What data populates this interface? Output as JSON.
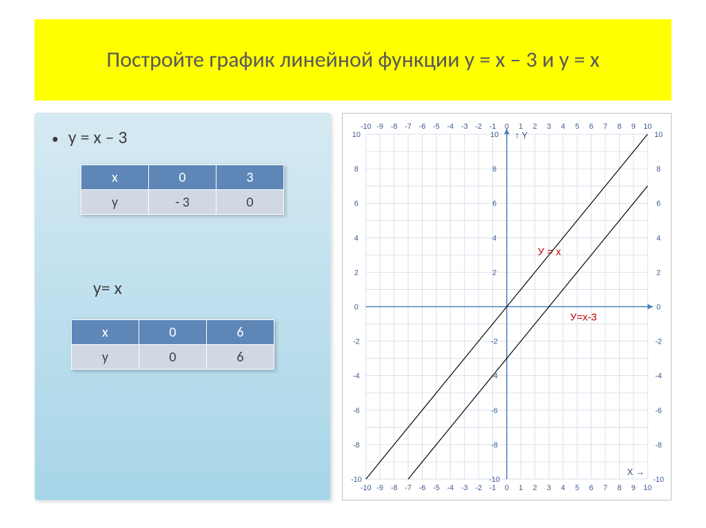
{
  "title": {
    "text": "Постройте график линейной\nфункции     у = х – 3   и  у = х",
    "background_color": "#ffff00",
    "text_color": "#595959",
    "fontsize": 32
  },
  "left": {
    "background_gradient": [
      "#d6eaf3",
      "#a7d5e8"
    ],
    "bullet1": "у = х – 3",
    "bullet2": "у= х",
    "table1": {
      "header_bg": "#5e87b8",
      "body_bg": "#d1d8e4",
      "cols": [
        "х",
        "0",
        "3"
      ],
      "row": [
        "у",
        "- 3",
        "0"
      ]
    },
    "table2": {
      "header_bg": "#5e87b8",
      "body_bg": "#d1d8e4",
      "cols": [
        "х",
        "0",
        "6"
      ],
      "row": [
        "у",
        "0",
        "6"
      ]
    }
  },
  "chart": {
    "xlim": [
      -10,
      10
    ],
    "ylim": [
      -10,
      10
    ],
    "tick_step": 1,
    "major_step": 2,
    "grid_color": "#d0d8e6",
    "axis_color": "#4f81bd",
    "tick_label_color": "#3b5a8f",
    "background_color": "#ffffff",
    "y_axis_label": "Y",
    "x_axis_label": "X →",
    "lines": [
      {
        "name": "У = х",
        "points": [
          [
            -10,
            -10
          ],
          [
            10,
            10
          ]
        ],
        "color": "#000000",
        "width": 1.2,
        "label_pos": [
          2.2,
          3
        ]
      },
      {
        "name": "У=х-3",
        "points": [
          [
            -7,
            -10
          ],
          [
            10,
            7
          ]
        ],
        "color": "#000000",
        "width": 1.2,
        "label_pos": [
          4.5,
          -0.8
        ]
      }
    ]
  }
}
